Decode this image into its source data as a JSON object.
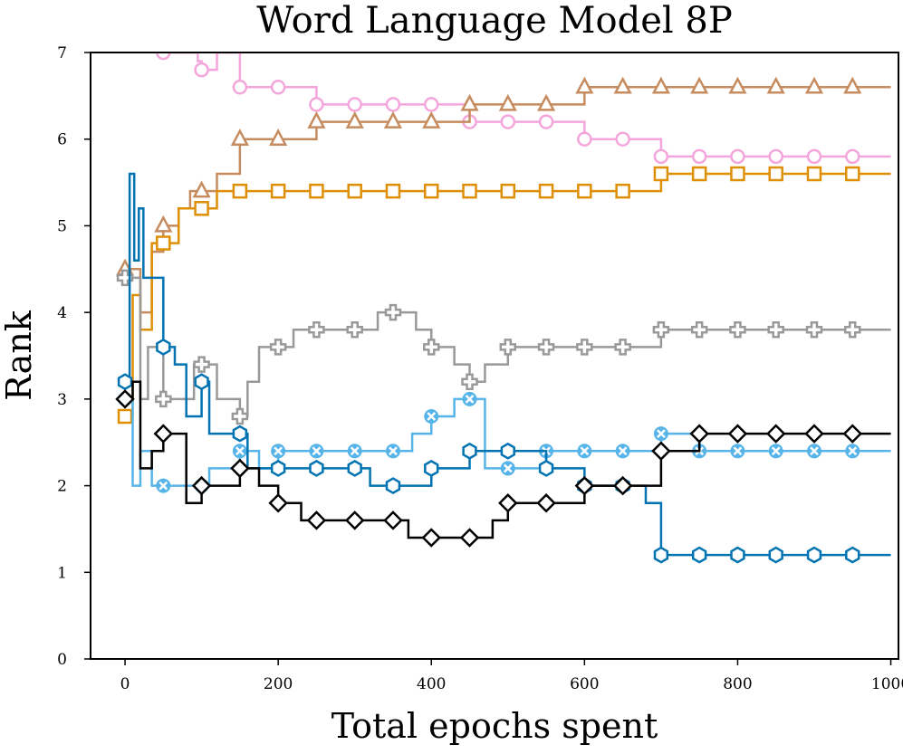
{
  "chart_data": {
    "type": "line",
    "title": "Word Language Model 8P",
    "xlabel": "Total epochs spent",
    "ylabel": "Rank",
    "xlim": [
      -45,
      1010
    ],
    "ylim": [
      0,
      7
    ],
    "x_ticks": [
      "0",
      "200",
      "400",
      "600",
      "800",
      "1000"
    ],
    "y_ticks": [
      "0",
      "1",
      "2",
      "3",
      "4",
      "5",
      "6",
      "7"
    ],
    "grid": false,
    "legend": "none",
    "series": [
      {
        "color": "#f4a6dc",
        "marker": "circle",
        "points": [
          [
            0,
            7.5
          ],
          [
            50,
            7.0
          ],
          [
            95,
            6.9
          ],
          [
            100,
            6.8
          ],
          [
            120,
            7.0
          ],
          [
            150,
            6.6
          ],
          [
            200,
            6.6
          ],
          [
            250,
            6.4
          ],
          [
            300,
            6.4
          ],
          [
            350,
            6.4
          ],
          [
            400,
            6.4
          ],
          [
            450,
            6.2
          ],
          [
            500,
            6.2
          ],
          [
            550,
            6.2
          ],
          [
            600,
            6.0
          ],
          [
            650,
            6.0
          ],
          [
            700,
            5.8
          ],
          [
            750,
            5.8
          ],
          [
            800,
            5.8
          ],
          [
            850,
            5.8
          ],
          [
            900,
            5.8
          ],
          [
            950,
            5.8
          ],
          [
            1000,
            5.8
          ]
        ]
      },
      {
        "color": "#c68b5e",
        "marker": "triangle",
        "points": [
          [
            0,
            4.5
          ],
          [
            10,
            4.5
          ],
          [
            20,
            4.0
          ],
          [
            35,
            4.7
          ],
          [
            50,
            5.0
          ],
          [
            70,
            5.2
          ],
          [
            85,
            5.4
          ],
          [
            100,
            5.4
          ],
          [
            120,
            5.6
          ],
          [
            150,
            6.0
          ],
          [
            200,
            6.0
          ],
          [
            250,
            6.2
          ],
          [
            300,
            6.2
          ],
          [
            350,
            6.2
          ],
          [
            400,
            6.2
          ],
          [
            450,
            6.4
          ],
          [
            500,
            6.4
          ],
          [
            550,
            6.4
          ],
          [
            600,
            6.6
          ],
          [
            650,
            6.6
          ],
          [
            700,
            6.6
          ],
          [
            750,
            6.6
          ],
          [
            800,
            6.6
          ],
          [
            850,
            6.6
          ],
          [
            900,
            6.6
          ],
          [
            950,
            6.6
          ],
          [
            1000,
            6.6
          ]
        ]
      },
      {
        "color": "#de8f05",
        "marker": "square",
        "points": [
          [
            0,
            2.8
          ],
          [
            10,
            4.2
          ],
          [
            20,
            3.8
          ],
          [
            35,
            4.8
          ],
          [
            50,
            4.8
          ],
          [
            70,
            5.2
          ],
          [
            100,
            5.2
          ],
          [
            120,
            5.4
          ],
          [
            150,
            5.4
          ],
          [
            200,
            5.4
          ],
          [
            250,
            5.4
          ],
          [
            300,
            5.4
          ],
          [
            350,
            5.4
          ],
          [
            400,
            5.4
          ],
          [
            450,
            5.4
          ],
          [
            500,
            5.4
          ],
          [
            550,
            5.4
          ],
          [
            600,
            5.4
          ],
          [
            650,
            5.4
          ],
          [
            700,
            5.6
          ],
          [
            750,
            5.6
          ],
          [
            800,
            5.6
          ],
          [
            850,
            5.6
          ],
          [
            900,
            5.6
          ],
          [
            950,
            5.6
          ],
          [
            1000,
            5.6
          ]
        ]
      },
      {
        "color": "#999999",
        "marker": "plus",
        "points": [
          [
            0,
            4.4
          ],
          [
            10,
            4.4
          ],
          [
            20,
            3.0
          ],
          [
            30,
            3.6
          ],
          [
            50,
            3.0
          ],
          [
            75,
            3.0
          ],
          [
            90,
            3.4
          ],
          [
            100,
            3.4
          ],
          [
            120,
            3.0
          ],
          [
            150,
            2.8
          ],
          [
            160,
            3.2
          ],
          [
            175,
            3.6
          ],
          [
            200,
            3.6
          ],
          [
            220,
            3.8
          ],
          [
            250,
            3.8
          ],
          [
            300,
            3.8
          ],
          [
            330,
            4.0
          ],
          [
            350,
            4.0
          ],
          [
            380,
            3.8
          ],
          [
            400,
            3.6
          ],
          [
            430,
            3.4
          ],
          [
            450,
            3.2
          ],
          [
            470,
            3.4
          ],
          [
            500,
            3.6
          ],
          [
            550,
            3.6
          ],
          [
            600,
            3.6
          ],
          [
            650,
            3.6
          ],
          [
            700,
            3.8
          ],
          [
            750,
            3.8
          ],
          [
            800,
            3.8
          ],
          [
            850,
            3.8
          ],
          [
            900,
            3.8
          ],
          [
            950,
            3.8
          ],
          [
            1000,
            3.8
          ]
        ]
      },
      {
        "color": "#56b4e9",
        "marker": "x",
        "points": [
          [
            0,
            3.0
          ],
          [
            10,
            2.0
          ],
          [
            20,
            2.4
          ],
          [
            35,
            2.0
          ],
          [
            50,
            2.0
          ],
          [
            75,
            2.0
          ],
          [
            100,
            2.0
          ],
          [
            110,
            2.2
          ],
          [
            150,
            2.4
          ],
          [
            175,
            2.2
          ],
          [
            200,
            2.4
          ],
          [
            250,
            2.4
          ],
          [
            300,
            2.4
          ],
          [
            350,
            2.4
          ],
          [
            375,
            2.6
          ],
          [
            400,
            2.8
          ],
          [
            430,
            3.0
          ],
          [
            450,
            3.0
          ],
          [
            470,
            2.2
          ],
          [
            500,
            2.2
          ],
          [
            550,
            2.4
          ],
          [
            600,
            2.4
          ],
          [
            650,
            2.4
          ],
          [
            700,
            2.6
          ],
          [
            750,
            2.4
          ],
          [
            800,
            2.4
          ],
          [
            850,
            2.4
          ],
          [
            900,
            2.4
          ],
          [
            950,
            2.4
          ],
          [
            1000,
            2.4
          ]
        ]
      },
      {
        "color": "#0173b2",
        "marker": "hexagon",
        "points": [
          [
            0,
            3.2
          ],
          [
            6,
            5.6
          ],
          [
            12,
            4.6
          ],
          [
            18,
            5.2
          ],
          [
            24,
            4.4
          ],
          [
            35,
            4.4
          ],
          [
            50,
            3.6
          ],
          [
            65,
            3.4
          ],
          [
            80,
            2.8
          ],
          [
            100,
            3.2
          ],
          [
            110,
            2.6
          ],
          [
            150,
            2.6
          ],
          [
            160,
            2.2
          ],
          [
            200,
            2.2
          ],
          [
            250,
            2.2
          ],
          [
            300,
            2.2
          ],
          [
            320,
            2.0
          ],
          [
            350,
            2.0
          ],
          [
            400,
            2.2
          ],
          [
            450,
            2.4
          ],
          [
            500,
            2.4
          ],
          [
            550,
            2.2
          ],
          [
            600,
            2.0
          ],
          [
            650,
            2.0
          ],
          [
            680,
            1.8
          ],
          [
            700,
            1.2
          ],
          [
            750,
            1.2
          ],
          [
            800,
            1.2
          ],
          [
            850,
            1.2
          ],
          [
            900,
            1.2
          ],
          [
            950,
            1.2
          ],
          [
            1000,
            1.2
          ]
        ]
      },
      {
        "color": "#000000",
        "marker": "diamond",
        "points": [
          [
            0,
            3.0
          ],
          [
            10,
            3.2
          ],
          [
            20,
            2.2
          ],
          [
            35,
            2.4
          ],
          [
            50,
            2.6
          ],
          [
            70,
            2.6
          ],
          [
            80,
            1.8
          ],
          [
            100,
            2.0
          ],
          [
            130,
            2.0
          ],
          [
            150,
            2.2
          ],
          [
            175,
            2.0
          ],
          [
            200,
            1.8
          ],
          [
            230,
            1.6
          ],
          [
            250,
            1.6
          ],
          [
            300,
            1.6
          ],
          [
            350,
            1.6
          ],
          [
            370,
            1.4
          ],
          [
            400,
            1.4
          ],
          [
            450,
            1.4
          ],
          [
            480,
            1.6
          ],
          [
            500,
            1.8
          ],
          [
            550,
            1.8
          ],
          [
            600,
            2.0
          ],
          [
            650,
            2.0
          ],
          [
            700,
            2.4
          ],
          [
            750,
            2.6
          ],
          [
            800,
            2.6
          ],
          [
            850,
            2.6
          ],
          [
            900,
            2.6
          ],
          [
            950,
            2.6
          ],
          [
            1000,
            2.6
          ]
        ]
      }
    ]
  }
}
